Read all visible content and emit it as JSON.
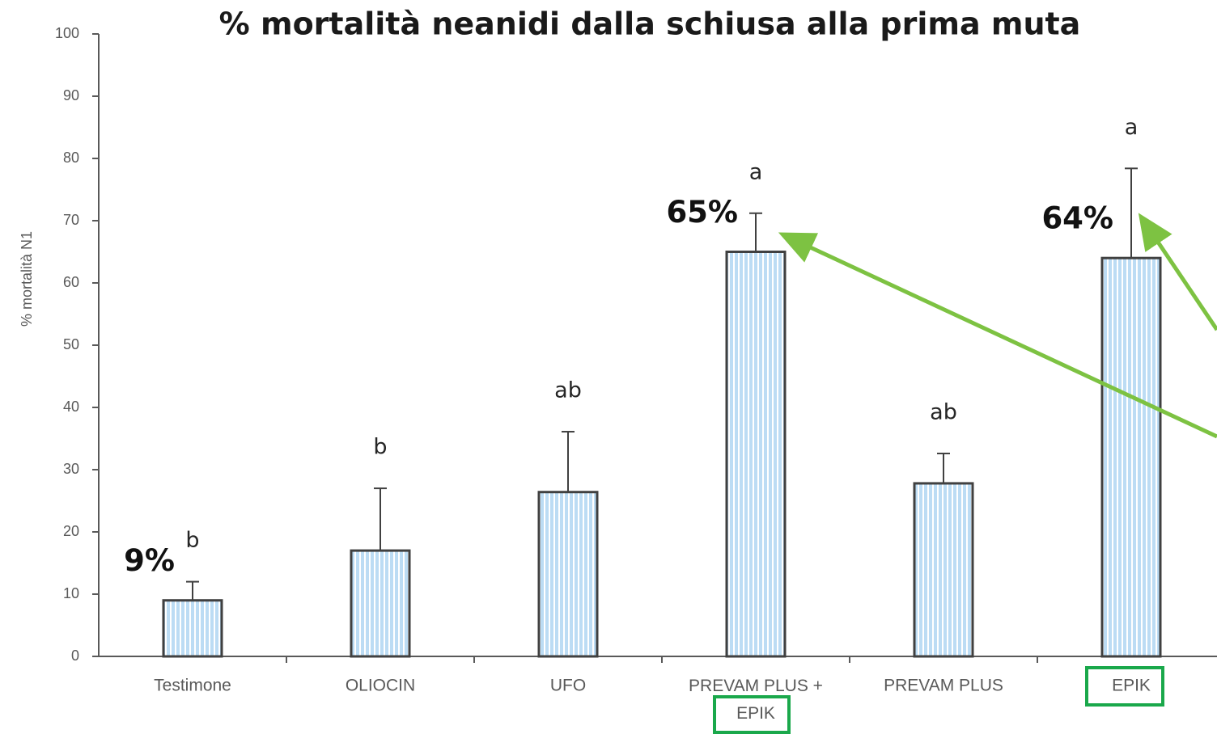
{
  "chart_data": {
    "type": "bar",
    "title": "% mortalità neanidi dalla schiusa alla prima muta",
    "y_label": "% mortalità N1",
    "categories": [
      "Testimone",
      "OLIOCIN",
      "UFO",
      "PREVAM PLUS +\nEPIK",
      "PREVAM PLUS",
      "EPIK"
    ],
    "values": [
      9,
      17,
      26.4,
      65,
      27.8,
      64
    ],
    "errors": [
      3,
      10,
      9.7,
      6.2,
      4.8,
      14.4
    ],
    "value_labels": [
      "9%",
      null,
      null,
      "65%",
      null,
      "64%"
    ],
    "letters": [
      "b",
      "b",
      "ab",
      "a",
      "ab",
      "a"
    ],
    "color": "#bcdcf4",
    "ylim": [
      0,
      100
    ],
    "yticks": [
      0,
      10,
      20,
      30,
      40,
      50,
      60,
      70,
      80,
      90,
      100
    ]
  }
}
